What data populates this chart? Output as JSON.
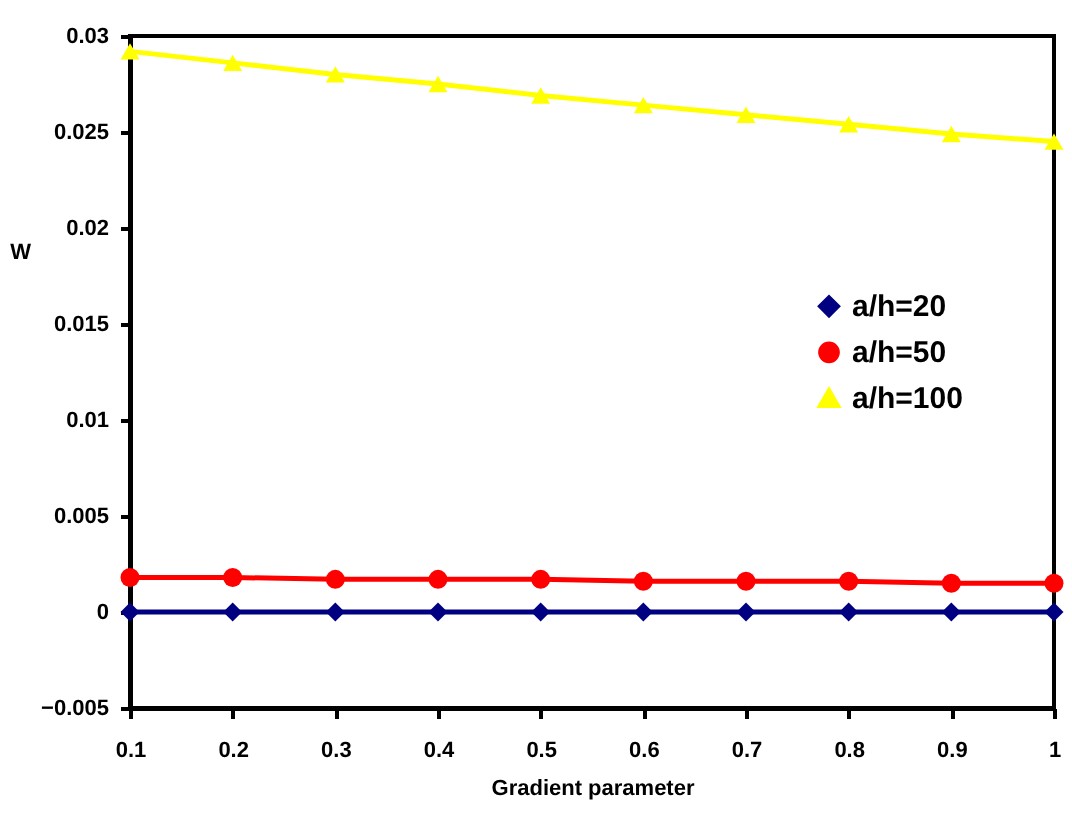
{
  "chart_data": {
    "type": "line",
    "xlabel": "Gradient parameter",
    "ylabel": "W",
    "x": [
      0.1,
      0.2,
      0.3,
      0.4,
      0.5,
      0.6,
      0.7,
      0.8,
      0.9,
      1
    ],
    "series": [
      {
        "name": "a/h=20",
        "color": "#000080",
        "marker": "diamond",
        "values": [
          0,
          0,
          0,
          0,
          0,
          0,
          0,
          0,
          0,
          0
        ]
      },
      {
        "name": "a/h=50",
        "color": "#ff0000",
        "marker": "circle",
        "values": [
          0.0018,
          0.0018,
          0.0017,
          0.0017,
          0.0017,
          0.0016,
          0.0016,
          0.0016,
          0.0015,
          0.0015
        ]
      },
      {
        "name": "a/h=100",
        "color": "#ffff00",
        "marker": "triangle",
        "values": [
          0.0292,
          0.0286,
          0.028,
          0.0275,
          0.0269,
          0.0264,
          0.0259,
          0.0254,
          0.0249,
          0.0245
        ]
      }
    ],
    "xlim": [
      0.1,
      1
    ],
    "xticks": [
      0.1,
      0.2,
      0.3,
      0.4,
      0.5,
      0.6,
      0.7,
      0.8,
      0.9,
      1
    ],
    "ylim": [
      -0.005,
      0.03
    ],
    "yticks": [
      -0.005,
      0,
      0.005,
      0.01,
      0.015,
      0.02,
      0.025,
      0.03
    ],
    "grid": false,
    "legend": "right",
    "line_style": "solid"
  }
}
